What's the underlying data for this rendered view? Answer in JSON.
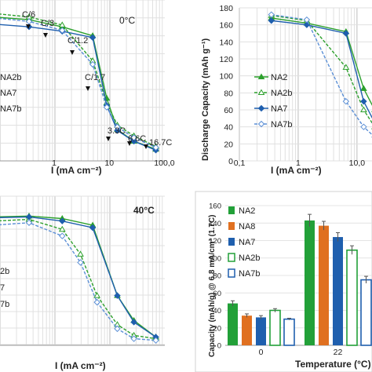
{
  "chart_data": [
    {
      "type": "line",
      "annotation": "0°C",
      "xlabel": "I (mA cm⁻²)",
      "x_scale": "log",
      "xlim": [
        0.1,
        100
      ],
      "x_ticks": [
        "1",
        "10",
        "100,0"
      ],
      "grid": true,
      "rate_labels": [
        "C/6",
        "C/3",
        "C/1.2",
        "C/1.7",
        "3.3C",
        "6.6C",
        "16.7C"
      ],
      "legend": [
        "NA2b",
        "NA7",
        "NA7b"
      ],
      "series": [
        {
          "name": "NA2",
          "color": "#2ca02c",
          "style": "solid",
          "marker": "triangle",
          "x": [
            0.08,
            0.35,
            1.4,
            5,
            9,
            14,
            28,
            70
          ],
          "y": [
            161,
            158,
            150,
            140,
            70,
            35,
            22,
            13
          ]
        },
        {
          "name": "NA2b",
          "color": "#2ca02c",
          "style": "dashed",
          "marker": "triangle-open",
          "x": [
            0.08,
            0.35,
            1.4,
            5,
            9,
            14,
            28,
            70
          ],
          "y": [
            165,
            161,
            152,
            112,
            65,
            40,
            28,
            16
          ]
        },
        {
          "name": "NA7",
          "color": "#1f5fae",
          "style": "solid",
          "marker": "diamond",
          "x": [
            0.08,
            0.35,
            1.4,
            5,
            9,
            14,
            28,
            70
          ],
          "y": [
            153,
            150,
            145,
            138,
            62,
            34,
            22,
            12
          ]
        },
        {
          "name": "NA7b",
          "color": "#5b8fd6",
          "style": "dashed",
          "marker": "diamond-open",
          "x": [
            0.08,
            0.35,
            1.4,
            5,
            9,
            14,
            28,
            70
          ],
          "y": [
            160,
            156,
            146,
            108,
            60,
            38,
            26,
            15
          ]
        }
      ]
    },
    {
      "type": "line",
      "xlabel": "I (mA cm⁻²)",
      "ylabel": "Discharge Capacity (mAh g⁻¹)",
      "x_scale": "log",
      "xlim": [
        0.1,
        20
      ],
      "ylim": [
        0,
        180
      ],
      "y_ticks": [
        "0",
        "20",
        "40",
        "60",
        "80",
        "100",
        "120",
        "140",
        "160",
        "180"
      ],
      "x_ticks": [
        "0,1",
        "1",
        "10,0"
      ],
      "grid": true,
      "legend": [
        "NA2",
        "NA2b",
        "NA7",
        "NA7b"
      ],
      "series": [
        {
          "name": "NA2",
          "color": "#2ca02c",
          "style": "solid",
          "marker": "triangle",
          "x": [
            0.35,
            1.4,
            6.5,
            13,
            20
          ],
          "y": [
            168,
            162,
            152,
            85,
            60
          ]
        },
        {
          "name": "NA2b",
          "color": "#2ca02c",
          "style": "dashed",
          "marker": "triangle-open",
          "x": [
            0.35,
            1.4,
            6.5,
            13,
            20
          ],
          "y": [
            171,
            165,
            110,
            60,
            40
          ]
        },
        {
          "name": "NA7",
          "color": "#1f5fae",
          "style": "solid",
          "marker": "diamond",
          "x": [
            0.35,
            1.4,
            6.5,
            13,
            20
          ],
          "y": [
            165,
            160,
            150,
            70,
            45
          ]
        },
        {
          "name": "NA7b",
          "color": "#5b8fd6",
          "style": "dashed",
          "marker": "diamond-open",
          "x": [
            0.35,
            1.4,
            6.5,
            13,
            20
          ],
          "y": [
            172,
            166,
            70,
            40,
            28
          ]
        }
      ]
    },
    {
      "type": "line",
      "annotation": "40°C",
      "annotation_color": "#c00000",
      "xlabel": "I (mA cm⁻²)",
      "x_scale": "log",
      "xlim": [
        0.1,
        100
      ],
      "grid": true,
      "legend": [
        "2b",
        "7",
        "7b"
      ],
      "series": [
        {
          "name": "NA2",
          "color": "#2ca02c",
          "style": "solid",
          "marker": "triangle",
          "x": [
            0.08,
            0.35,
            1.4,
            5,
            14,
            28,
            70
          ],
          "y": [
            155,
            156,
            153,
            145,
            60,
            30,
            10
          ]
        },
        {
          "name": "NA2b",
          "color": "#2ca02c",
          "style": "dashed",
          "marker": "triangle-open",
          "x": [
            0.08,
            0.35,
            1.4,
            3,
            6,
            14,
            28,
            70
          ],
          "y": [
            150,
            152,
            140,
            110,
            60,
            25,
            12,
            8
          ]
        },
        {
          "name": "NA7",
          "color": "#1f5fae",
          "style": "solid",
          "marker": "diamond",
          "x": [
            0.08,
            0.35,
            1.4,
            5,
            14,
            28,
            70
          ],
          "y": [
            154,
            155,
            150,
            142,
            60,
            28,
            10
          ]
        },
        {
          "name": "NA7b",
          "color": "#5b8fd6",
          "style": "dashed",
          "marker": "diamond-open",
          "x": [
            0.08,
            0.35,
            1.4,
            3,
            6,
            14,
            28,
            70
          ],
          "y": [
            145,
            148,
            132,
            100,
            52,
            20,
            8,
            6
          ]
        }
      ]
    },
    {
      "type": "bar",
      "categories": [
        "0",
        "22"
      ],
      "xlabel": "Temperature (°C)",
      "ylabel": "Capacity (mAh/g) @ 6.8 mA/cm² (1.7C)",
      "ylim": [
        0,
        160
      ],
      "y_ticks": [
        "0",
        "20",
        "40",
        "60",
        "80",
        "100",
        "120",
        "140",
        "160"
      ],
      "legend": [
        "NA2",
        "NA8",
        "NA7",
        "NA2b",
        "NA7b"
      ],
      "series": [
        {
          "name": "NA2",
          "color": "#22a038",
          "fill": "solid",
          "values": [
            48,
            143
          ],
          "errors": [
            3,
            7
          ]
        },
        {
          "name": "NA8",
          "color": "#e07020",
          "fill": "solid",
          "values": [
            34,
            137
          ],
          "errors": [
            2,
            5
          ]
        },
        {
          "name": "NA7",
          "color": "#1f5fae",
          "fill": "solid",
          "values": [
            32,
            124
          ],
          "errors": [
            2,
            5
          ]
        },
        {
          "name": "NA2b",
          "color": "#22a038",
          "fill": "open",
          "values": [
            40,
            109
          ],
          "errors": [
            2,
            5
          ]
        },
        {
          "name": "NA7b",
          "color": "#1f5fae",
          "fill": "open",
          "values": [
            30,
            75
          ],
          "errors": [
            1,
            4
          ]
        }
      ]
    }
  ]
}
